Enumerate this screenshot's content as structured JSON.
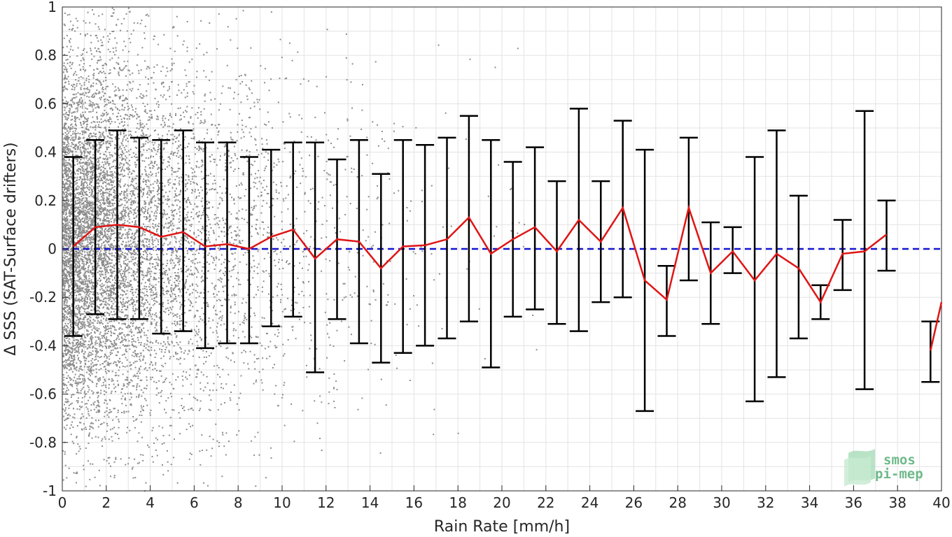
{
  "chart_data": {
    "type": "scatter",
    "title": "",
    "xlabel": "Rain Rate [mm/h]",
    "ylabel": "Δ SSS (SAT-Surface drifters)",
    "xlim": [
      0,
      40
    ],
    "ylim": [
      -1,
      1
    ],
    "x_ticks": [
      "0",
      "2",
      "4",
      "6",
      "8",
      "10",
      "12",
      "14",
      "16",
      "18",
      "20",
      "22",
      "24",
      "26",
      "28",
      "30",
      "32",
      "34",
      "36",
      "38",
      "40"
    ],
    "y_ticks": [
      "-1",
      "-0.8",
      "-0.6",
      "-0.4",
      "-0.2",
      "0",
      "0.2",
      "0.4",
      "0.6",
      "0.8",
      "1"
    ],
    "grid": true,
    "reference_line": {
      "y": 0,
      "style": "dashed",
      "color": "#1515d0"
    },
    "colors": {
      "scatter": "#8c8c8c",
      "mean_line": "#e01515",
      "error_bars": "#000000",
      "grid": "#e3e3e3"
    },
    "mean_x": [
      0.5,
      1.5,
      2.5,
      3.5,
      4.5,
      5.5,
      6.5,
      7.5,
      8.5,
      9.5,
      10.5,
      11.5,
      12.5,
      13.5,
      14.5,
      15.5,
      16.5,
      17.5,
      18.5,
      19.5,
      20.5,
      21.5,
      22.5,
      23.5,
      24.5,
      25.5,
      26.5,
      27.5,
      28.5,
      29.5,
      30.5,
      31.5,
      32.5,
      33.5,
      34.5,
      35.5,
      36.5,
      37.5,
      null,
      39.5,
      40
    ],
    "mean_y": [
      0.01,
      0.09,
      0.1,
      0.09,
      0.05,
      0.07,
      0.01,
      0.02,
      0.0,
      0.05,
      0.08,
      -0.04,
      0.04,
      0.03,
      -0.08,
      0.01,
      0.015,
      0.04,
      0.13,
      -0.02,
      0.04,
      0.09,
      -0.01,
      0.12,
      0.03,
      0.17,
      -0.13,
      -0.21,
      0.17,
      -0.1,
      -0.01,
      -0.13,
      -0.02,
      -0.08,
      -0.22,
      -0.02,
      -0.01,
      0.06,
      null,
      -0.42,
      -0.22
    ],
    "error_bars": [
      {
        "x": 0.5,
        "low": -0.36,
        "high": 0.38
      },
      {
        "x": 1.5,
        "low": -0.27,
        "high": 0.45
      },
      {
        "x": 2.5,
        "low": -0.29,
        "high": 0.49
      },
      {
        "x": 3.5,
        "low": -0.29,
        "high": 0.46
      },
      {
        "x": 4.5,
        "low": -0.35,
        "high": 0.45
      },
      {
        "x": 5.5,
        "low": -0.34,
        "high": 0.49
      },
      {
        "x": 6.5,
        "low": -0.41,
        "high": 0.44
      },
      {
        "x": 7.5,
        "low": -0.39,
        "high": 0.44
      },
      {
        "x": 8.5,
        "low": -0.39,
        "high": 0.38
      },
      {
        "x": 9.5,
        "low": -0.32,
        "high": 0.41
      },
      {
        "x": 10.5,
        "low": -0.28,
        "high": 0.44
      },
      {
        "x": 11.5,
        "low": -0.51,
        "high": 0.44
      },
      {
        "x": 12.5,
        "low": -0.29,
        "high": 0.37
      },
      {
        "x": 13.5,
        "low": -0.39,
        "high": 0.45
      },
      {
        "x": 14.5,
        "low": -0.47,
        "high": 0.31
      },
      {
        "x": 15.5,
        "low": -0.43,
        "high": 0.45
      },
      {
        "x": 16.5,
        "low": -0.4,
        "high": 0.43
      },
      {
        "x": 17.5,
        "low": -0.37,
        "high": 0.46
      },
      {
        "x": 18.5,
        "low": -0.3,
        "high": 0.55
      },
      {
        "x": 19.5,
        "low": -0.49,
        "high": 0.45
      },
      {
        "x": 20.5,
        "low": -0.28,
        "high": 0.36
      },
      {
        "x": 21.5,
        "low": -0.25,
        "high": 0.42
      },
      {
        "x": 22.5,
        "low": -0.31,
        "high": 0.28
      },
      {
        "x": 23.5,
        "low": -0.34,
        "high": 0.58
      },
      {
        "x": 24.5,
        "low": -0.22,
        "high": 0.28
      },
      {
        "x": 25.5,
        "low": -0.2,
        "high": 0.53
      },
      {
        "x": 26.5,
        "low": -0.67,
        "high": 0.41
      },
      {
        "x": 27.5,
        "low": -0.36,
        "high": -0.07
      },
      {
        "x": 28.5,
        "low": -0.13,
        "high": 0.46
      },
      {
        "x": 29.5,
        "low": -0.31,
        "high": 0.11
      },
      {
        "x": 30.5,
        "low": -0.1,
        "high": 0.09
      },
      {
        "x": 31.5,
        "low": -0.63,
        "high": 0.38
      },
      {
        "x": 32.5,
        "low": -0.53,
        "high": 0.49
      },
      {
        "x": 33.5,
        "low": -0.37,
        "high": 0.22
      },
      {
        "x": 34.5,
        "low": -0.29,
        "high": -0.15
      },
      {
        "x": 35.5,
        "low": -0.17,
        "high": 0.12
      },
      {
        "x": 36.5,
        "low": -0.58,
        "high": 0.57
      },
      {
        "x": 37.5,
        "low": -0.09,
        "high": 0.2
      },
      {
        "x": 39.5,
        "low": -0.55,
        "high": -0.3
      }
    ]
  },
  "logo": {
    "line1": "smos",
    "line2": "pi-mep"
  }
}
